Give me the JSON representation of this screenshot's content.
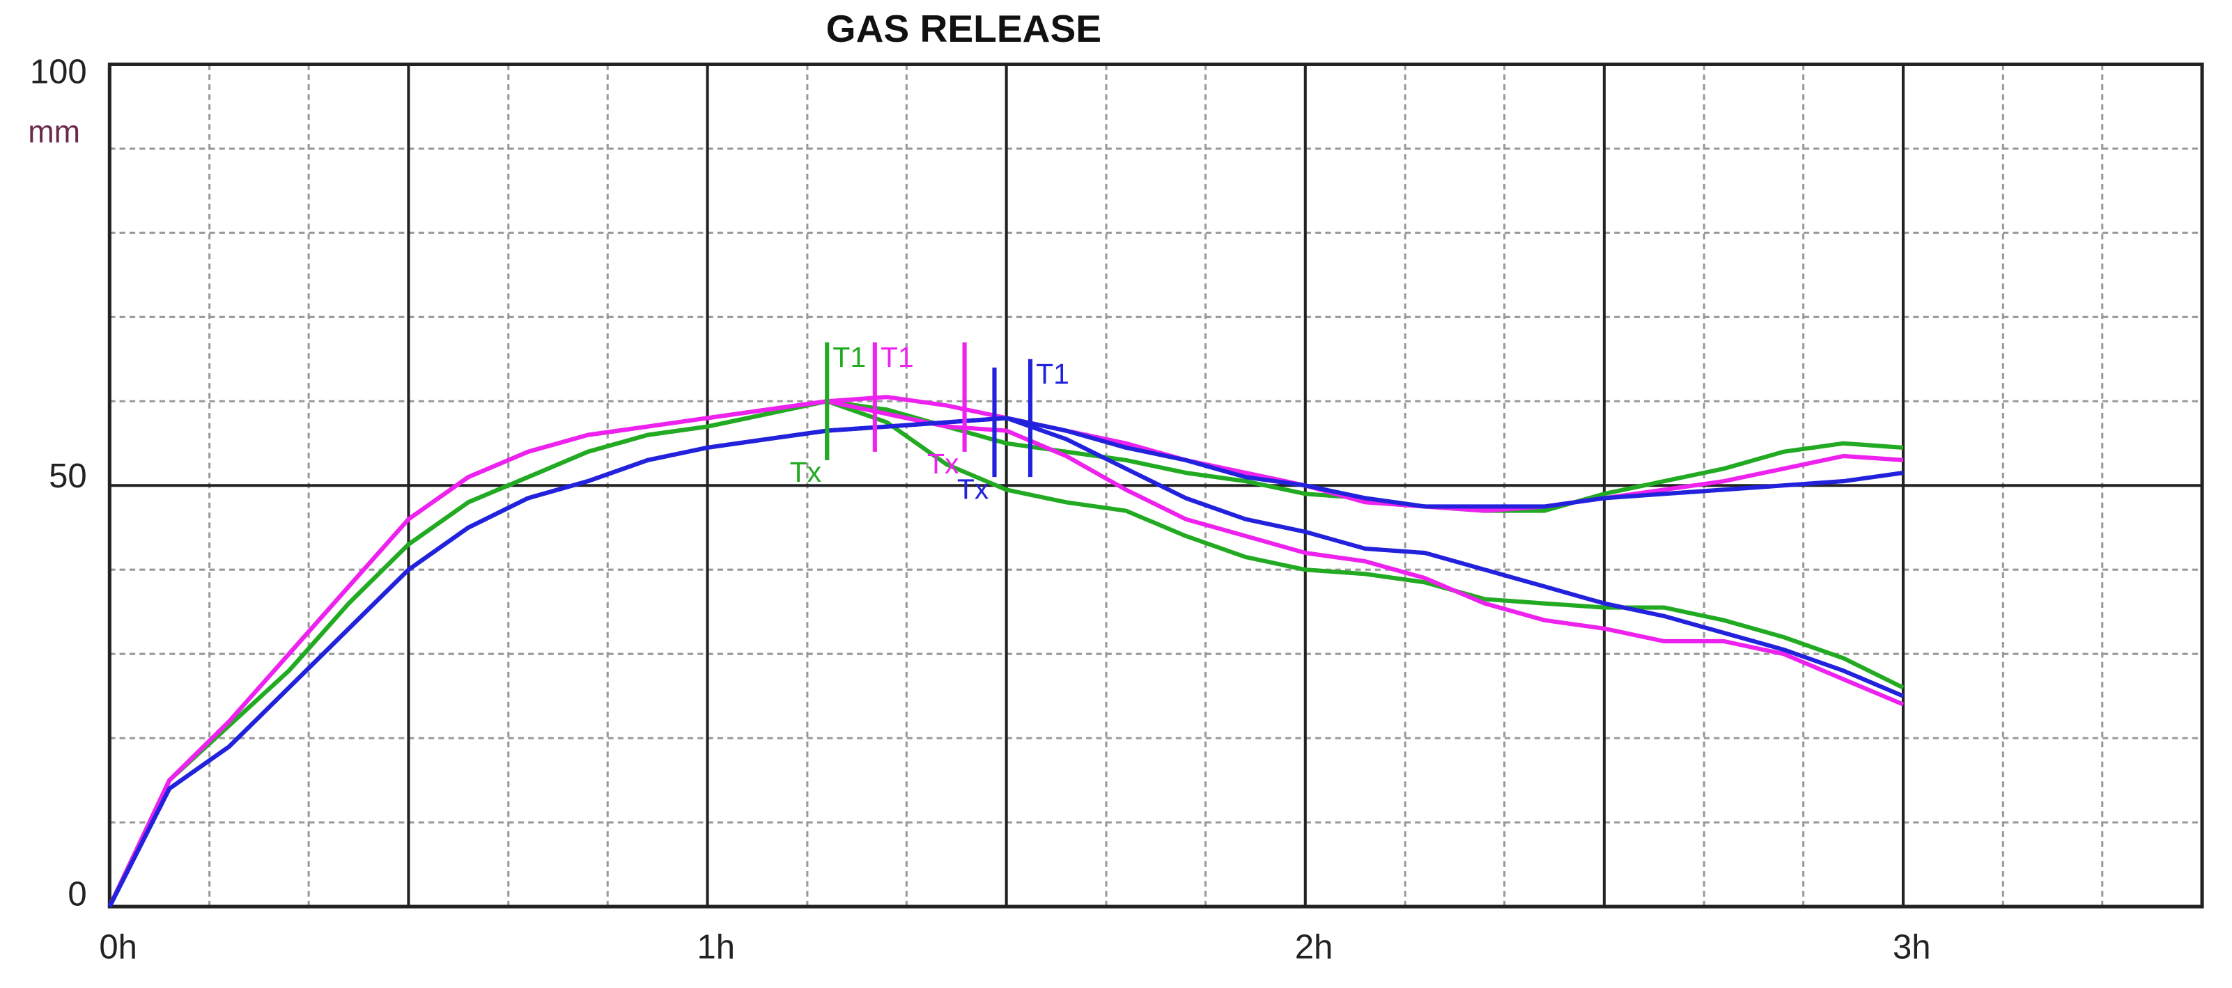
{
  "chart_data": {
    "type": "line",
    "title": "GAS RELEASE",
    "y_unit": "mm",
    "x": [
      0,
      0.1,
      0.2,
      0.3,
      0.4,
      0.5,
      0.6,
      0.7,
      0.8,
      0.9,
      1.0,
      1.1,
      1.2,
      1.3,
      1.4,
      1.5,
      1.6,
      1.7,
      1.8,
      1.9,
      2.0,
      2.1,
      2.2,
      2.3,
      2.4,
      2.5,
      2.6,
      2.7,
      2.8,
      2.9,
      3.0
    ],
    "series": [
      {
        "color": "#22aa22",
        "values": [
          0,
          15,
          21.5,
          28,
          36,
          43,
          48,
          51,
          54,
          56,
          57,
          58.5,
          60,
          59,
          57,
          55,
          54,
          53,
          51.5,
          50.5,
          49,
          48.5,
          47.5,
          47,
          47,
          49,
          50.5,
          52,
          54,
          55,
          54.5
        ]
      },
      {
        "color": "#22aa22",
        "values": [
          0,
          15,
          21.5,
          28,
          36,
          43,
          48,
          51,
          54,
          56,
          57,
          58.5,
          60,
          57.5,
          52.5,
          49.5,
          48,
          47,
          44,
          41.5,
          40,
          39.5,
          38.5,
          36.5,
          36,
          35.5,
          35.5,
          34,
          32,
          29.5,
          26
        ]
      },
      {
        "color": "#ee22ee",
        "values": [
          0,
          15,
          22,
          30,
          38,
          46,
          51,
          54,
          56,
          57,
          58,
          59,
          60,
          60.5,
          59.5,
          58,
          56.5,
          55,
          53,
          51.5,
          50,
          48,
          47.5,
          47,
          47.5,
          48.5,
          49.5,
          50.5,
          52,
          53.5,
          53
        ]
      },
      {
        "color": "#ee22ee",
        "values": [
          0,
          15,
          22,
          30,
          38,
          46,
          51,
          54,
          56,
          57,
          58,
          59,
          60,
          58.5,
          57,
          56.5,
          53.5,
          49.5,
          46,
          44,
          42,
          41,
          39,
          36,
          34,
          33,
          31.5,
          31.5,
          30,
          27,
          24
        ]
      },
      {
        "color": "#2222dd",
        "values": [
          0,
          14,
          19,
          26,
          33,
          40,
          45,
          48.5,
          50.5,
          53,
          54.5,
          55.5,
          56.5,
          57,
          57.5,
          58,
          56.5,
          54.5,
          53,
          51,
          50,
          48.5,
          47.5,
          47.5,
          47.5,
          48.5,
          49,
          49.5,
          50,
          50.5,
          51.5
        ]
      },
      {
        "color": "#2222dd",
        "values": [
          0,
          14,
          19,
          26,
          33,
          40,
          45,
          48.5,
          50.5,
          53,
          54.5,
          55.5,
          56.5,
          57,
          57.5,
          58,
          55.5,
          52,
          48.5,
          46,
          44.5,
          42.5,
          42,
          40,
          38,
          36,
          34.5,
          32.5,
          30.5,
          28,
          25
        ]
      }
    ],
    "markers": [
      {
        "label": "T1",
        "x": 1.2,
        "low": 53,
        "high": 67,
        "color": "#22aa22"
      },
      {
        "label": "T1",
        "x": 1.28,
        "low": 54,
        "high": 67,
        "color": "#ee22ee"
      },
      {
        "label": "T1",
        "x": 1.54,
        "low": 51,
        "high": 65,
        "color": "#2222dd"
      },
      {
        "label": "Tx",
        "x": 1.2,
        "low": 53,
        "high": 56,
        "color": "#22aa22"
      },
      {
        "label": "Tx",
        "x": 1.43,
        "low": 54,
        "high": 67,
        "color": "#ee22ee"
      },
      {
        "label": "Tx",
        "x": 1.48,
        "low": 51,
        "high": 64,
        "color": "#2222dd"
      }
    ],
    "xlim": [
      0,
      3.5
    ],
    "ylim": [
      0,
      100
    ],
    "xticks": [
      {
        "value": 0,
        "label": "0h"
      },
      {
        "value": 1,
        "label": "1h"
      },
      {
        "value": 2,
        "label": "2h"
      },
      {
        "value": 3,
        "label": "3h"
      }
    ],
    "yticks": [
      0,
      50,
      100
    ],
    "x_major_grid": [
      0.5,
      1.5,
      2.5,
      3.5
    ],
    "x_minor_grid": [
      0.167,
      0.333,
      0.667,
      0.833,
      1.167,
      1.333,
      1.667,
      1.833,
      2.167,
      2.333,
      2.667,
      2.833,
      3.167,
      3.333
    ],
    "y_minor_grid": [
      10,
      20,
      30,
      40,
      60,
      70,
      80,
      90
    ],
    "grid": true
  }
}
